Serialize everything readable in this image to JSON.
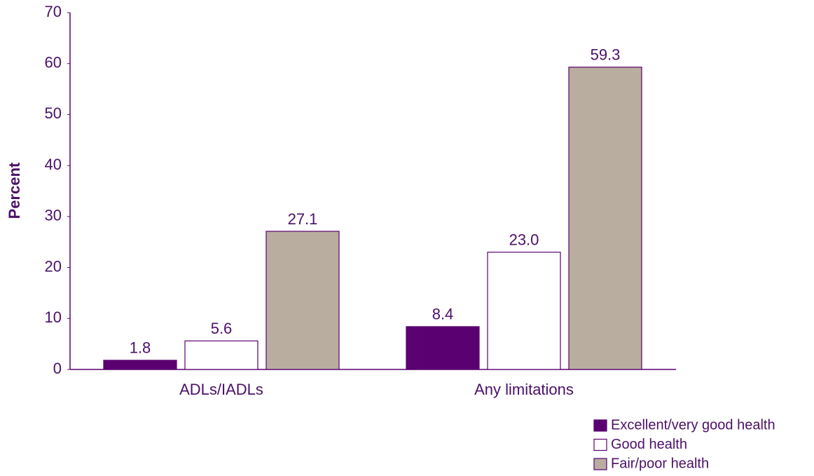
{
  "chart_data": {
    "type": "bar",
    "y_label": "Percent",
    "categories": [
      "ADLs/IADLs",
      "Any limitations"
    ],
    "series": [
      {
        "name": "Excellent/very good health",
        "color": "#5a0070",
        "values": [
          1.8,
          8.4
        ],
        "value_labels": [
          "1.8",
          "8.4"
        ]
      },
      {
        "name": "Good health",
        "color": "#ffffff",
        "values": [
          5.6,
          23.0
        ],
        "value_labels": [
          "5.6",
          "23.0"
        ]
      },
      {
        "name": "Fair/poor health",
        "color": "#b9ad9f",
        "values": [
          27.1,
          59.3
        ],
        "value_labels": [
          "27.1",
          "59.3"
        ]
      }
    ],
    "ylim": [
      0,
      70
    ],
    "yticks": [
      0,
      10,
      20,
      30,
      40,
      50,
      60,
      70
    ],
    "legend": "bottom-right"
  }
}
